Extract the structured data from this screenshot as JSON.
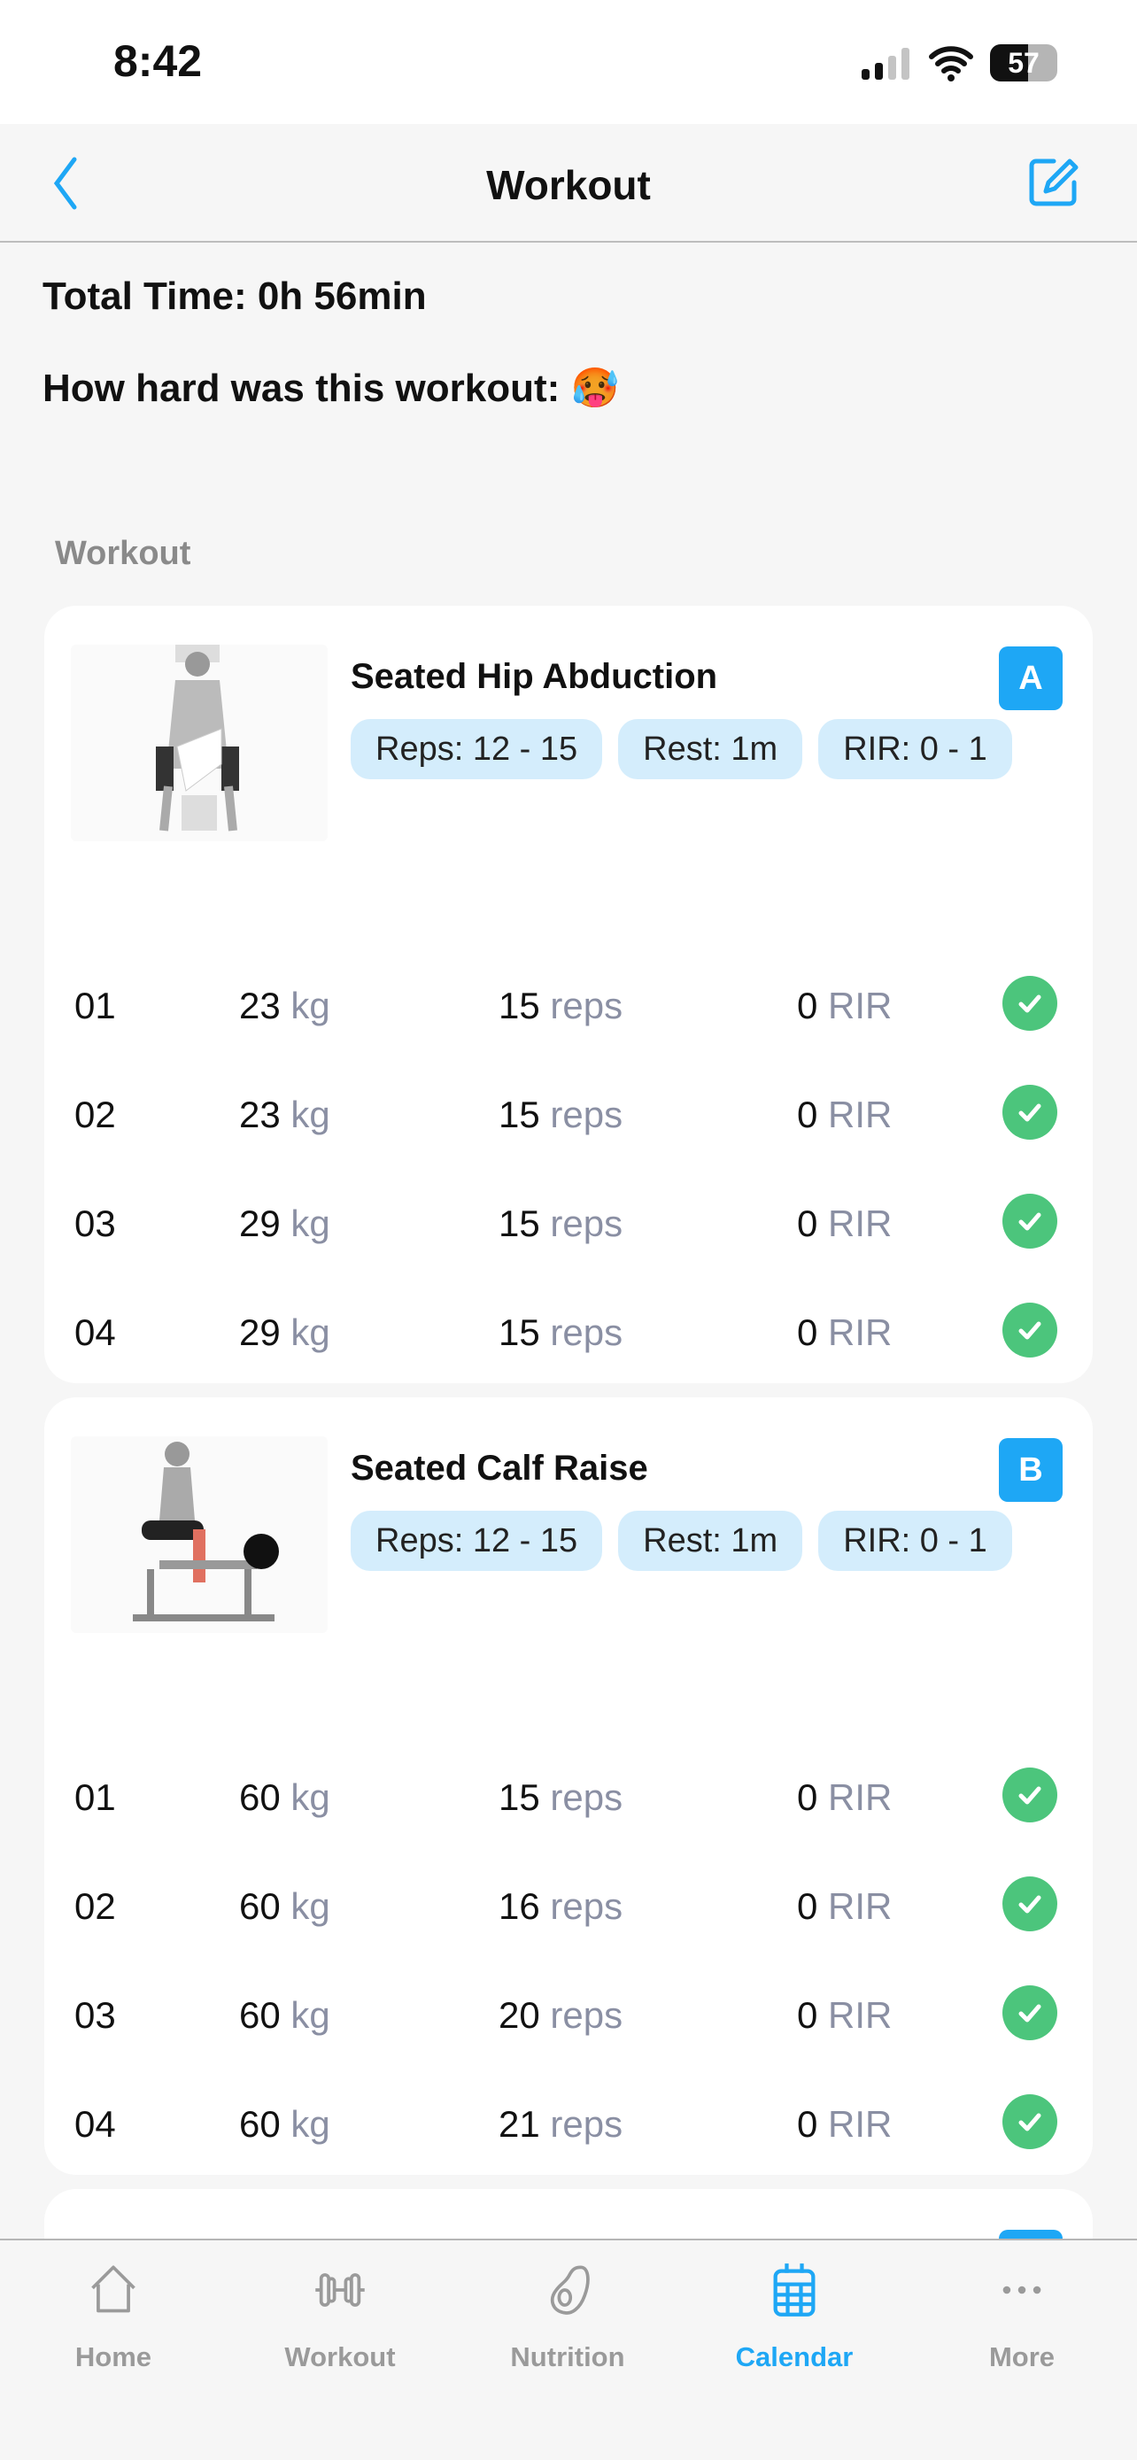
{
  "status_bar": {
    "time": "8:42",
    "battery": "57",
    "battery_level": 57,
    "signal_bars": 2
  },
  "nav": {
    "title": "Workout",
    "back_icon": "chevron-left-icon",
    "edit_icon": "edit-icon"
  },
  "summary": {
    "total_time": "Total Time: 0h 56min",
    "difficulty_label": "How hard was this workout:",
    "difficulty_emoji": "🥵"
  },
  "section_label": "Workout",
  "exercises": [
    {
      "title": "Seated Hip Abduction",
      "badge": "A",
      "pills": [
        "Reps: 12 - 15",
        "Rest: 1m",
        "RIR: 0 - 1"
      ],
      "sets": [
        {
          "idx": "01",
          "weight": "23",
          "reps": "15",
          "rir": "0",
          "done": true
        },
        {
          "idx": "02",
          "weight": "23",
          "reps": "15",
          "rir": "0",
          "done": true
        },
        {
          "idx": "03",
          "weight": "29",
          "reps": "15",
          "rir": "0",
          "done": true
        },
        {
          "idx": "04",
          "weight": "29",
          "reps": "15",
          "rir": "0",
          "done": true
        }
      ]
    },
    {
      "title": "Seated Calf Raise",
      "badge": "B",
      "pills": [
        "Reps: 12 - 15",
        "Rest: 1m",
        "RIR: 0 - 1"
      ],
      "sets": [
        {
          "idx": "01",
          "weight": "60",
          "reps": "15",
          "rir": "0",
          "done": true
        },
        {
          "idx": "02",
          "weight": "60",
          "reps": "16",
          "rir": "0",
          "done": true
        },
        {
          "idx": "03",
          "weight": "60",
          "reps": "20",
          "rir": "0",
          "done": true
        },
        {
          "idx": "04",
          "weight": "60",
          "reps": "21",
          "rir": "0",
          "done": true
        }
      ]
    }
  ],
  "units": {
    "weight": "kg",
    "reps": "reps",
    "rir": "RIR"
  },
  "tabs": [
    {
      "label": "Home",
      "icon": "home-icon"
    },
    {
      "label": "Workout",
      "icon": "dumbbell-icon"
    },
    {
      "label": "Nutrition",
      "icon": "avocado-icon"
    },
    {
      "label": "Calendar",
      "icon": "calendar-icon",
      "active": true
    },
    {
      "label": "More",
      "icon": "more-icon"
    }
  ],
  "colors": {
    "accent": "#1ea7f5",
    "success": "#4cc57c",
    "pill": "#d4edfc"
  }
}
